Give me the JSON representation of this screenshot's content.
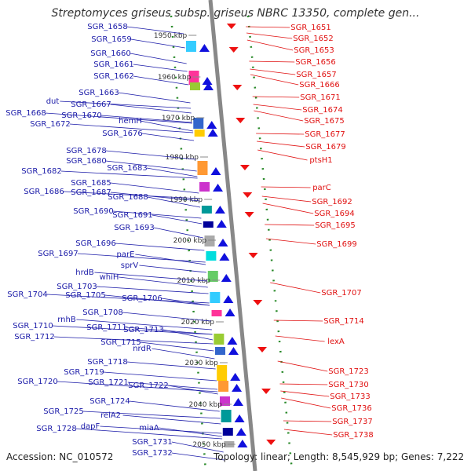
{
  "title": "Streptomyces griseus subsp. griseus NBRC 13350, complete gen...",
  "footer": {
    "accession": "Accession: NC_010572",
    "topology": "Topology: linear; Length: 8,545,929 bp; Genes: 7,222"
  },
  "colors": {
    "left_labels": "#1a1aa8",
    "right_labels": "#e01010",
    "spine": "#888888",
    "tick_dots": "#2a8a2a"
  },
  "left_labels": [
    "SGR_1658",
    "SGR_1659",
    "SGR_1660",
    "SGR_1661",
    "SGR_1662",
    "SGR_1663",
    "dut",
    "SGR_1667",
    "SGR_1668",
    "SGR_1670",
    "SGR_1672",
    "hemH",
    "SGR_1676",
    "SGR_1678",
    "SGR_1680",
    "SGR_1682",
    "SGR_1683",
    "SGR_1685",
    "SGR_1686",
    "SGR_1687",
    "SGR_1688",
    "SGR_1690",
    "SGR_1691",
    "SGR_1693",
    "SGR_1696",
    "SGR_1697",
    "parE",
    "sprV",
    "hrdB",
    "whiH",
    "SGR_1703",
    "SGR_1704",
    "SGR_1705",
    "SGR_1706",
    "SGR_1708",
    "rnhB",
    "SGR_1711",
    "SGR_1710",
    "SGR_1713",
    "SGR_1712",
    "SGR_1715",
    "nrdR",
    "SGR_1718",
    "SGR_1719",
    "SGR_1720",
    "SGR_1721",
    "SGR_1722",
    "SGR_1724",
    "SGR_1725",
    "relA2",
    "SGR_1728",
    "dapF",
    "miaA",
    "SGR_1731",
    "SGR_1732"
  ],
  "right_labels": [
    "SGR_1651",
    "SGR_1652",
    "SGR_1653",
    "SGR_1656",
    "SGR_1657",
    "SGR_1666",
    "SGR_1671",
    "SGR_1674",
    "SGR_1675",
    "SGR_1677",
    "SGR_1679",
    "ptsH1",
    "parC",
    "SGR_1692",
    "SGR_1694",
    "SGR_1695",
    "SGR_1699",
    "SGR_1707",
    "SGR_1714",
    "lexA",
    "SGR_1723",
    "SGR_1730",
    "SGR_1733",
    "SGR_1736",
    "SGR_1737",
    "SGR_1738"
  ],
  "ticks": [
    "1950 kbp",
    "1960 kbp",
    "1970 kbp",
    "1980 kbp",
    "1990 kbp",
    "2000 kbp",
    "2010 kbp",
    "2020 kbp",
    "2030 kbp",
    "2040 kbp",
    "2050 kbp"
  ]
}
